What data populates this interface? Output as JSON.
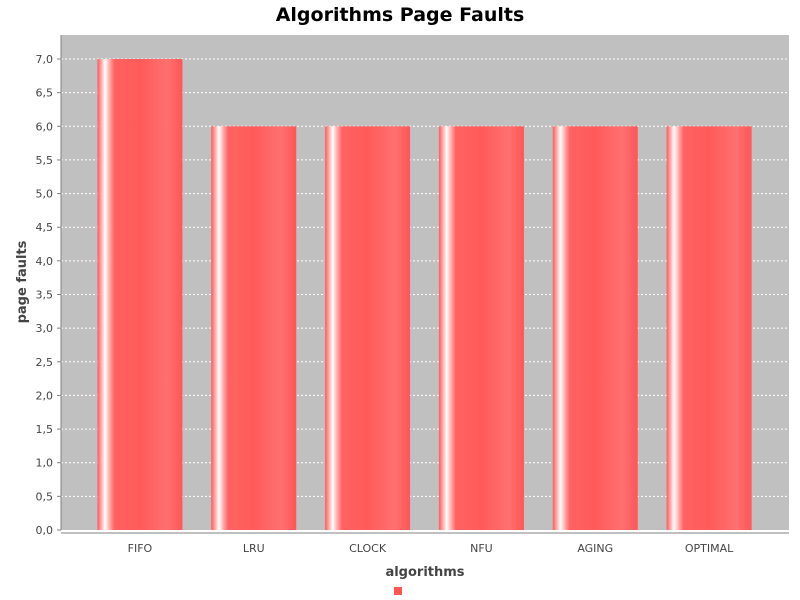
{
  "chart_data": {
    "type": "bar",
    "title": "Algorithms Page Faults",
    "xlabel": "algorithms",
    "ylabel": "page faults",
    "categories": [
      "FIFO",
      "LRU",
      "CLOCK",
      "NFU",
      "AGING",
      "OPTIMAL"
    ],
    "series": [
      {
        "values": [
          7,
          6,
          6,
          6,
          6,
          6
        ]
      }
    ],
    "ylim": [
      0,
      7.0
    ],
    "y_ticks": [
      "0,0",
      "0,5",
      "1,0",
      "1,5",
      "2,0",
      "2,5",
      "3,0",
      "3,5",
      "4,0",
      "4,5",
      "5,0",
      "5,5",
      "6,0",
      "6,5",
      "7,0"
    ],
    "grid": true,
    "legend": "bottom-center",
    "colors": {
      "bar": "#ff5555",
      "bar_highlight": "#ffffff",
      "plot_background": "#c0c0c0",
      "gridline": "#ffffff"
    }
  }
}
